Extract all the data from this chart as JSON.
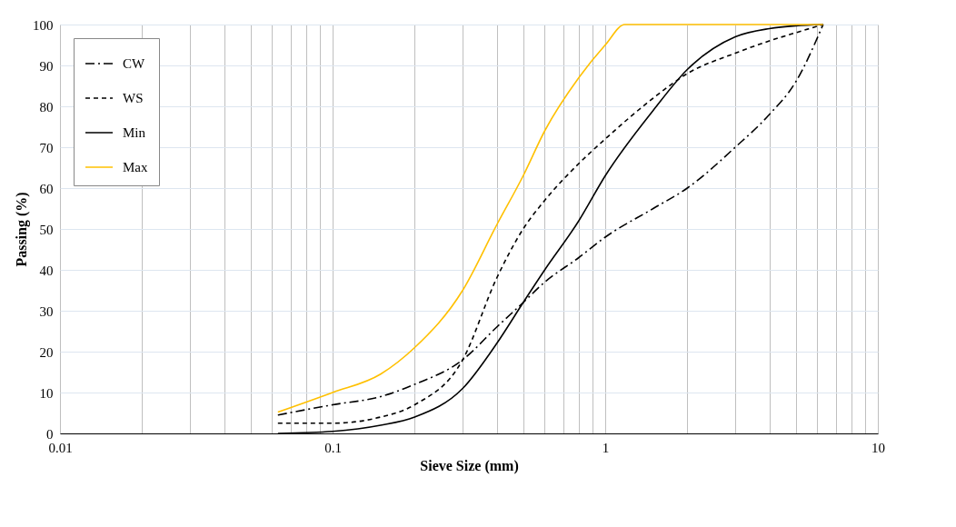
{
  "chart_data": {
    "type": "line",
    "xlabel": "Sieve Size (mm)",
    "ylabel": "Passing (%)",
    "log": "x",
    "xlim": [
      0.01,
      10
    ],
    "ylim": [
      0,
      100
    ],
    "xticks": [
      0.01,
      {
        "value": 0.02,
        "label": null
      },
      {
        "value": 0.03,
        "label": null
      },
      {
        "value": 0.04,
        "label": null
      },
      {
        "value": 0.05,
        "label": null
      },
      {
        "value": 0.06,
        "label": null
      },
      {
        "value": 0.07,
        "label": null
      },
      {
        "value": 0.08,
        "label": null
      },
      {
        "value": 0.09,
        "label": null
      },
      0.1,
      {
        "value": 0.2,
        "label": null
      },
      {
        "value": 0.3,
        "label": null
      },
      {
        "value": 0.4,
        "label": null
      },
      {
        "value": 0.5,
        "label": null
      },
      {
        "value": 0.6,
        "label": null
      },
      {
        "value": 0.7,
        "label": null
      },
      {
        "value": 0.8,
        "label": null
      },
      {
        "value": 0.9,
        "label": null
      },
      1,
      {
        "value": 2,
        "label": null
      },
      {
        "value": 3,
        "label": null
      },
      {
        "value": 4,
        "label": null
      },
      {
        "value": 5,
        "label": null
      },
      {
        "value": 6,
        "label": null
      },
      {
        "value": 7,
        "label": null
      },
      {
        "value": 8,
        "label": null
      },
      {
        "value": 9,
        "label": null
      },
      10
    ],
    "yticks": [
      0,
      10,
      20,
      30,
      40,
      50,
      60,
      70,
      80,
      90,
      100
    ],
    "grid": true,
    "legend": "top left",
    "x": [
      0.063,
      0.1,
      0.15,
      0.2,
      0.3,
      0.4,
      0.5,
      0.6,
      0.8,
      1,
      1.5,
      2,
      3,
      4,
      5,
      6.3
    ],
    "series": [
      {
        "name": "CW",
        "color": "#000000",
        "line_style": "dashdot",
        "values": [
          4.5,
          7,
          9,
          12,
          18,
          26,
          32,
          37,
          43,
          48,
          55,
          60,
          70,
          78,
          86,
          100
        ]
      },
      {
        "name": "WS",
        "color": "#000000",
        "line_style": "dashed",
        "values": [
          2.5,
          2.5,
          4,
          7,
          18,
          38,
          50,
          57,
          66,
          72,
          82,
          88,
          93,
          96,
          98,
          100
        ]
      },
      {
        "name": "Min",
        "color": "#000000",
        "line_style": "solid",
        "values": [
          0,
          0.5,
          2,
          4,
          11,
          22,
          32,
          40,
          52,
          63,
          79,
          89,
          97,
          99,
          99.7,
          100
        ]
      },
      {
        "name": "Max",
        "color": "#ffc000",
        "line_style": "solid",
        "x": [
          0.063,
          0.1,
          0.15,
          0.2,
          0.3,
          0.4,
          0.5,
          0.6,
          0.8,
          1,
          1.18,
          2,
          4,
          6.3
        ],
        "values": [
          5.2,
          10,
          14.5,
          21,
          35,
          51,
          63,
          74,
          87,
          95,
          100,
          100,
          100,
          100
        ]
      }
    ]
  }
}
